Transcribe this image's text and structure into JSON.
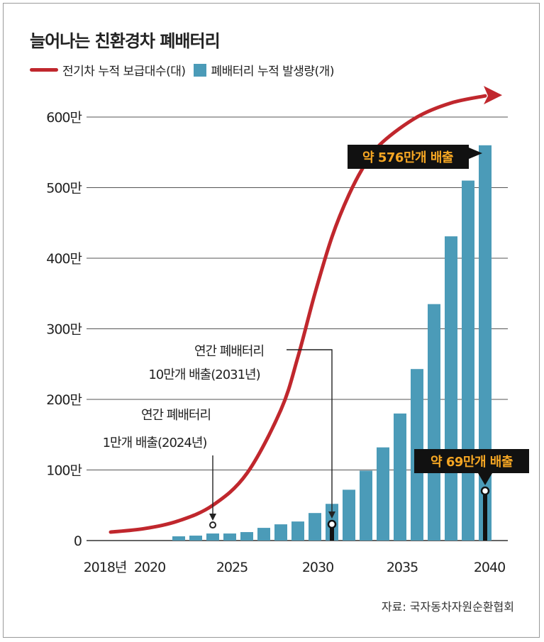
{
  "title": "늘어나는 친환경차 폐배터리",
  "legend": {
    "line_label": "전기차 누적 보급대수(대)",
    "bar_label": "폐배터리 누적 발생량(개)"
  },
  "source": "자료: 국자동차자원순환협회",
  "colors": {
    "bar": "#4b9bb8",
    "line": "#c0272d",
    "callout_bg": "#111111",
    "callout_text": "#f5a623"
  },
  "chart_data": {
    "type": "bar",
    "title": "늘어나는 친환경차 폐배터리",
    "ylim": [
      0,
      6000000
    ],
    "y_ticks": [
      {
        "value": 0,
        "label": "0"
      },
      {
        "value": 1000000,
        "label": "100만"
      },
      {
        "value": 2000000,
        "label": "200만"
      },
      {
        "value": 3000000,
        "label": "300만"
      },
      {
        "value": 4000000,
        "label": "400만"
      },
      {
        "value": 5000000,
        "label": "500만"
      },
      {
        "value": 6000000,
        "label": "600만"
      }
    ],
    "x_labels": [
      "2018년",
      "2020",
      "2025",
      "2030",
      "2035",
      "2040"
    ],
    "series": [
      {
        "name": "폐배터리 누적 발생량(개)",
        "type": "bar",
        "x": [
          2022,
          2023,
          2024,
          2025,
          2026,
          2027,
          2028,
          2029,
          2030,
          2031,
          2032,
          2033,
          2034,
          2035,
          2036,
          2037,
          2038,
          2039,
          2040
        ],
        "values": [
          60000,
          70000,
          100000,
          100000,
          120000,
          180000,
          230000,
          270000,
          390000,
          520000,
          720000,
          990000,
          1320000,
          1800000,
          2430000,
          3350000,
          4310000,
          5100000,
          5600000
        ]
      },
      {
        "name": "전기차 누적 보급대수(대)",
        "type": "line",
        "x": [
          2018,
          2020,
          2022,
          2024,
          2026,
          2028,
          2029,
          2030,
          2031,
          2032,
          2033,
          2034,
          2036,
          2038,
          2040
        ],
        "values": [
          120000,
          170000,
          280000,
          500000,
          950000,
          1850000,
          2600000,
          3500000,
          4300000,
          4900000,
          5350000,
          5650000,
          6000000,
          6200000,
          6300000
        ]
      }
    ],
    "annotations": [
      {
        "text_line1": "연간 폐배터리",
        "text_line2": "1만개 배출(2024년)",
        "year": 2024,
        "value": 100000
      },
      {
        "text_line1": "연간 폐배터리",
        "text_line2": "10만개 배출(2031년)",
        "year": 2031,
        "value": 200000
      },
      {
        "text": "약 576만개 배출",
        "year": 2040,
        "value": 5760000
      },
      {
        "text": "약 69만개 배출",
        "year": 2040,
        "value": 690000
      }
    ],
    "grid": true
  }
}
